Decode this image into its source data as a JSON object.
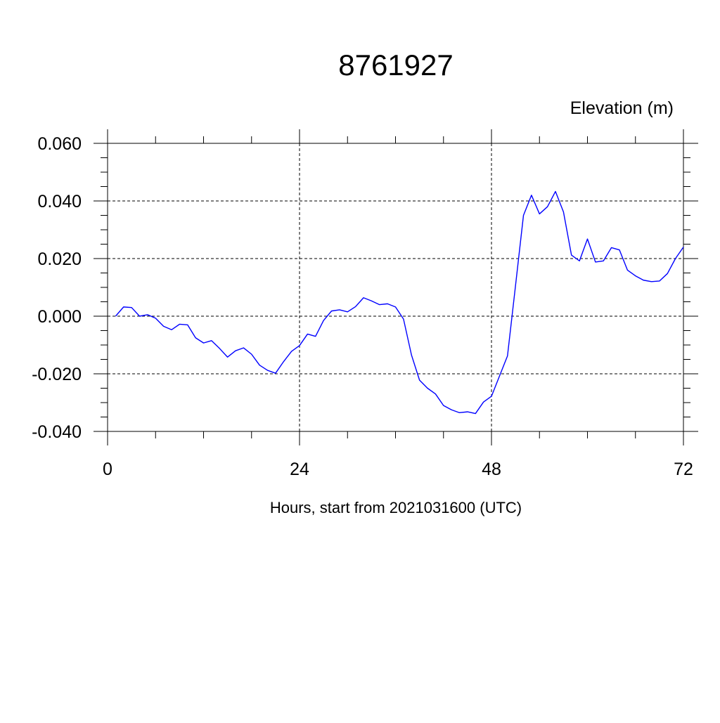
{
  "chart_data": {
    "type": "line",
    "title": "8761927",
    "units_label": "Elevation (m)",
    "xlabel": "Hours, start from 2021031600 (UTC)",
    "ylabel": "",
    "xlim": [
      0,
      72
    ],
    "ylim": [
      -0.04,
      0.06
    ],
    "xticks": [
      0,
      24,
      48,
      72
    ],
    "xtick_labels": [
      "0",
      "24",
      "48",
      "72"
    ],
    "yticks": [
      -0.04,
      -0.02,
      0.0,
      0.02,
      0.04,
      0.06
    ],
    "ytick_labels": [
      "-0.040",
      "-0.020",
      "0.000",
      "0.020",
      "0.040",
      "0.060"
    ],
    "grid": true,
    "series": [
      {
        "color": "#0000ff",
        "x": [
          1,
          2,
          3,
          4,
          5,
          6,
          7,
          8,
          9,
          10,
          11,
          12,
          13,
          14,
          15,
          16,
          17,
          18,
          19,
          20,
          21,
          22,
          23,
          24,
          25,
          26,
          27,
          28,
          29,
          30,
          31,
          32,
          33,
          34,
          35,
          36,
          37,
          38,
          39,
          40,
          41,
          42,
          43,
          44,
          45,
          46,
          47,
          48,
          49,
          50,
          51,
          52,
          53,
          54,
          55,
          56,
          57,
          58,
          59,
          60,
          61,
          62,
          63,
          64,
          65,
          66,
          67,
          68,
          69,
          70,
          71,
          72
        ],
        "values": [
          0.0,
          0.0032,
          0.003,
          0.0,
          0.0005,
          -0.0007,
          -0.0035,
          -0.0047,
          -0.0028,
          -0.003,
          -0.0075,
          -0.0093,
          -0.0085,
          -0.0112,
          -0.0142,
          -0.012,
          -0.011,
          -0.0132,
          -0.017,
          -0.0188,
          -0.0198,
          -0.0158,
          -0.0122,
          -0.0102,
          -0.0062,
          -0.007,
          -0.0015,
          0.0018,
          0.0022,
          0.0015,
          0.0033,
          0.0064,
          0.0053,
          0.004,
          0.0043,
          0.0032,
          -0.001,
          -0.0135,
          -0.0222,
          -0.025,
          -0.027,
          -0.031,
          -0.0325,
          -0.0335,
          -0.0332,
          -0.0338,
          -0.0298,
          -0.0278,
          -0.0208,
          -0.0138,
          0.0105,
          0.035,
          0.042,
          0.0355,
          0.038,
          0.0433,
          0.0362,
          0.0212,
          0.0192,
          0.0268,
          0.0188,
          0.0192,
          0.0238,
          0.023,
          0.016,
          0.014,
          0.0125,
          0.012,
          0.0122,
          0.0148,
          0.02,
          0.024
        ]
      }
    ]
  }
}
